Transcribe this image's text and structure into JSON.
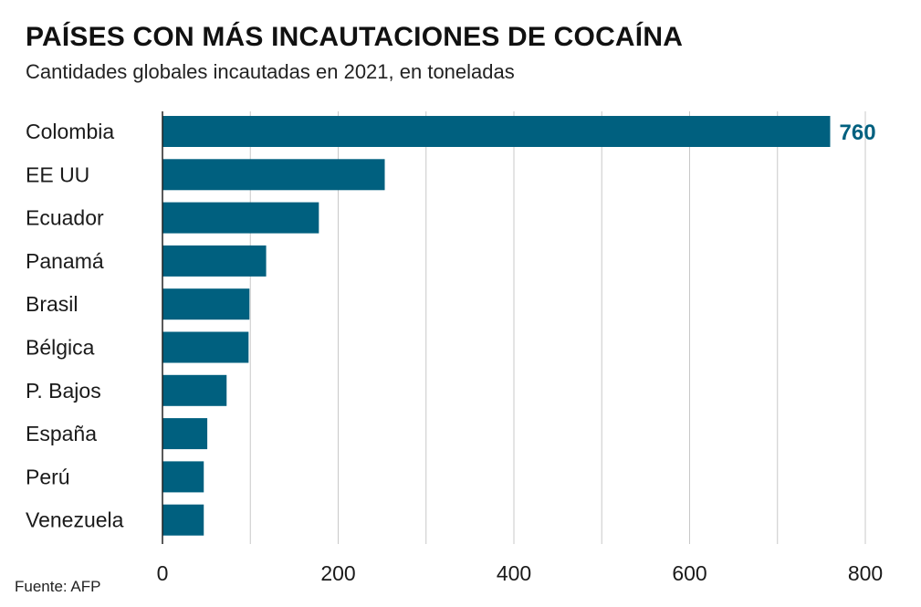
{
  "title": "PAÍSES CON MÁS INCAUTACIONES DE COCAÍNA",
  "subtitle": "Cantidades globales incautadas en 2021, en toneladas",
  "source": "Fuente: AFP",
  "colors": {
    "bar": "#00607f",
    "grid": "#c8c8c8",
    "axis": "#222222",
    "highlight_label": "#00607f"
  },
  "chart_data": {
    "type": "bar",
    "orientation": "horizontal",
    "categories": [
      "Colombia",
      "EE UU",
      "Ecuador",
      "Panamá",
      "Brasil",
      "Bélgica",
      "P. Bajos",
      "España",
      "Perú",
      "Venezuela"
    ],
    "values": [
      760,
      253,
      178,
      118,
      99,
      98,
      73,
      51,
      47,
      47
    ],
    "data_labels": [
      {
        "category": "Colombia",
        "label": "760"
      }
    ],
    "xlim": [
      0,
      800
    ],
    "x_ticks": [
      0,
      200,
      400,
      600,
      800
    ],
    "x_tick_labels": [
      "0",
      "200",
      "400",
      "600",
      "800"
    ],
    "grid": true,
    "xlabel": "",
    "ylabel": ""
  }
}
